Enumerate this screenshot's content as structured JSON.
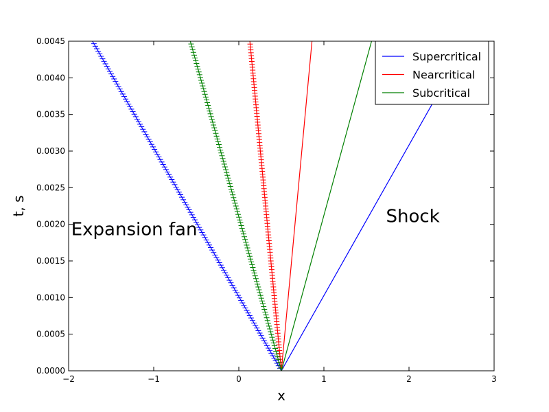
{
  "chart_data": {
    "type": "line",
    "title": "",
    "xlabel": "x",
    "ylabel": "t, s",
    "xlim": [
      -2,
      3
    ],
    "ylim": [
      0,
      0.0045
    ],
    "x_ticks": [
      -2,
      -1,
      0,
      1,
      2,
      3
    ],
    "x_tick_labels": [
      "−2",
      "−1",
      "0",
      "1",
      "2",
      "3"
    ],
    "y_ticks": [
      0,
      0.0005,
      0.001,
      0.0015,
      0.002,
      0.0025,
      0.003,
      0.0035,
      0.004,
      0.0045
    ],
    "y_tick_labels": [
      "0.0000",
      "0.0005",
      "0.0010",
      "0.0015",
      "0.0020",
      "0.0025",
      "0.0030",
      "0.0035",
      "0.0040",
      "0.0045"
    ],
    "grid": false,
    "legend_position": "top-right",
    "origin": {
      "x": 0.5,
      "t": 0
    },
    "series": [
      {
        "name": "Supercritical",
        "color": "#0000ff",
        "shock": {
          "x": [
            0.5,
            2.69
          ],
          "t": [
            0,
            0.0045
          ]
        },
        "fan_edge": {
          "x": [
            0.5,
            -1.72
          ],
          "t": [
            0,
            0.0045
          ]
        }
      },
      {
        "name": "Nearcritical",
        "color": "#ff0000",
        "shock": {
          "x": [
            0.5,
            0.86
          ],
          "t": [
            0,
            0.0045
          ]
        },
        "fan_edge": {
          "x": [
            0.5,
            0.13
          ],
          "t": [
            0,
            0.0045
          ]
        }
      },
      {
        "name": "Subcritical",
        "color": "#008000",
        "shock": {
          "x": [
            0.5,
            1.56
          ],
          "t": [
            0,
            0.0045
          ]
        },
        "fan_edge": {
          "x": [
            0.5,
            -0.57
          ],
          "t": [
            0,
            0.0045
          ]
        }
      }
    ],
    "annotations": [
      {
        "text": "Expansion fan",
        "x": -1.97,
        "t": 0.00185
      },
      {
        "text": "Shock",
        "x": 1.73,
        "t": 0.00203
      }
    ]
  }
}
